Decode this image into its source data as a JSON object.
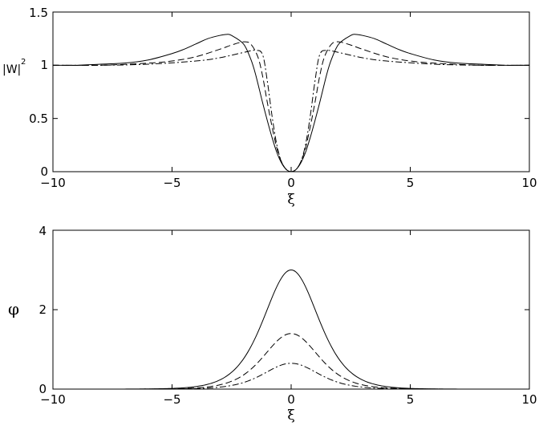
{
  "chart_data": [
    {
      "type": "line",
      "xlabel": "ξ",
      "ylabel": "|W|",
      "ylabel_sup": "2",
      "xlim": [
        -10,
        10
      ],
      "ylim": [
        0,
        1.5
      ],
      "xticks": [
        "−10",
        "−5",
        "0",
        "5",
        "10"
      ],
      "yticks": [
        "0",
        "0.5",
        "1",
        "1.5"
      ],
      "grid": false,
      "series": [
        {
          "style": "solid",
          "x": [
            -10,
            -9,
            -8,
            -7,
            -6,
            -5,
            -4.5,
            -4,
            -3.5,
            -3,
            -2.7,
            -2.5,
            -2,
            -1.7,
            -1.5,
            -1.2,
            -1,
            -0.8,
            -0.6,
            -0.4,
            -0.2,
            0,
            0.2,
            0.4,
            0.6,
            0.8,
            1,
            1.2,
            1.5,
            1.7,
            2,
            2.5,
            2.7,
            3,
            3.5,
            4,
            4.5,
            5,
            6,
            7,
            8,
            9,
            10
          ],
          "y": [
            1.0,
            1.0,
            1.01,
            1.02,
            1.05,
            1.11,
            1.15,
            1.2,
            1.25,
            1.28,
            1.29,
            1.28,
            1.2,
            1.06,
            0.92,
            0.65,
            0.48,
            0.32,
            0.18,
            0.08,
            0.02,
            0.0,
            0.02,
            0.08,
            0.18,
            0.32,
            0.48,
            0.65,
            0.92,
            1.06,
            1.2,
            1.28,
            1.29,
            1.28,
            1.25,
            1.2,
            1.15,
            1.11,
            1.05,
            1.02,
            1.01,
            1.0,
            1.0
          ]
        },
        {
          "style": "dashed",
          "x": [
            -10,
            -8,
            -6,
            -5,
            -4,
            -3,
            -2.5,
            -2,
            -1.7,
            -1.4,
            -1.2,
            -1,
            -0.8,
            -0.6,
            -0.4,
            -0.2,
            0,
            0.2,
            0.4,
            0.6,
            0.8,
            1,
            1.2,
            1.4,
            1.7,
            2,
            2.5,
            3,
            4,
            5,
            6,
            8,
            10
          ],
          "y": [
            1.0,
            1.0,
            1.02,
            1.04,
            1.08,
            1.15,
            1.19,
            1.22,
            1.2,
            1.08,
            0.9,
            0.65,
            0.42,
            0.22,
            0.09,
            0.02,
            0.0,
            0.02,
            0.09,
            0.22,
            0.42,
            0.65,
            0.9,
            1.08,
            1.2,
            1.22,
            1.19,
            1.15,
            1.08,
            1.04,
            1.02,
            1.0,
            1.0
          ]
        },
        {
          "style": "dashdot",
          "x": [
            -10,
            -8,
            -6,
            -4,
            -3,
            -2,
            -1.5,
            -1.2,
            -1,
            -0.8,
            -0.6,
            -0.4,
            -0.2,
            0,
            0.2,
            0.4,
            0.6,
            0.8,
            1,
            1.2,
            1.5,
            2,
            3,
            4,
            6,
            8,
            10
          ],
          "y": [
            1.0,
            1.0,
            1.01,
            1.04,
            1.07,
            1.12,
            1.14,
            1.1,
            0.85,
            0.52,
            0.25,
            0.09,
            0.02,
            0.0,
            0.02,
            0.09,
            0.25,
            0.52,
            0.85,
            1.1,
            1.14,
            1.12,
            1.07,
            1.04,
            1.01,
            1.0,
            1.0
          ]
        }
      ]
    },
    {
      "type": "line",
      "xlabel": "ξ",
      "ylabel": "φ",
      "xlim": [
        -10,
        10
      ],
      "ylim": [
        0,
        4
      ],
      "xticks": [
        "−10",
        "−5",
        "0",
        "5",
        "10"
      ],
      "yticks": [
        "0",
        "2",
        "4"
      ],
      "grid": false,
      "series": [
        {
          "style": "solid",
          "amplitude": 3.0,
          "width": 2.6
        },
        {
          "style": "dashed",
          "amplitude": 1.4,
          "width": 2.6
        },
        {
          "style": "dashdot",
          "amplitude": 0.65,
          "width": 2.6
        }
      ]
    }
  ]
}
